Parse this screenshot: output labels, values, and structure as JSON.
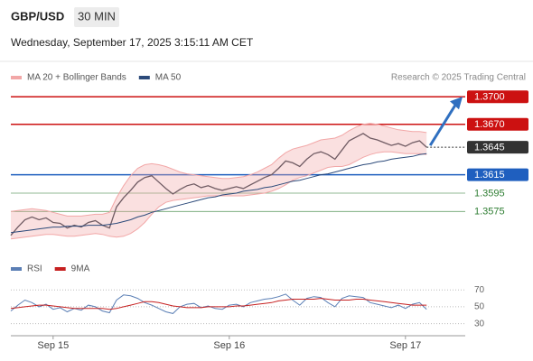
{
  "header": {
    "symbol": "GBP/USD",
    "timeframe": "30 MIN",
    "datetime": "Wednesday, September 17, 2025 3:15:11 AM CET"
  },
  "chart_data": [
    {
      "type": "line",
      "source": "Research © 2025 Trading Central",
      "categories": [
        null,
        null,
        null,
        null,
        null,
        null,
        "Sep 15",
        null,
        null,
        null,
        null,
        null,
        null,
        null,
        null,
        null,
        null,
        null,
        null,
        null,
        null,
        null,
        null,
        null,
        null,
        null,
        null,
        null,
        null,
        null,
        null,
        "Sep 16",
        null,
        null,
        null,
        null,
        null,
        null,
        null,
        null,
        null,
        null,
        null,
        null,
        null,
        null,
        null,
        null,
        null,
        null,
        null,
        null,
        null,
        null,
        null,
        null,
        "Sep 17",
        null,
        null,
        null
      ],
      "series": [
        {
          "color": "#2b3440",
          "values": [
            1.3549,
            1.3558,
            1.3566,
            1.3569,
            1.3566,
            1.3568,
            1.3563,
            1.3562,
            1.3557,
            1.356,
            1.3558,
            1.3563,
            1.3565,
            1.356,
            1.3557,
            1.358,
            1.359,
            1.3598,
            1.3607,
            1.3612,
            1.3614,
            1.3607,
            1.36,
            1.3594,
            1.3599,
            1.3603,
            1.3605,
            1.3601,
            1.3603,
            1.36,
            1.3598,
            1.36,
            1.3602,
            1.36,
            1.3604,
            1.3608,
            1.3612,
            1.3615,
            1.3622,
            1.363,
            1.3628,
            1.3624,
            1.3632,
            1.3638,
            1.364,
            1.3637,
            1.3632,
            1.3642,
            1.3652,
            1.3656,
            1.366,
            1.3655,
            1.3653,
            1.365,
            1.3647,
            1.3649,
            1.3646,
            1.365,
            1.3652,
            1.3645
          ]
        },
        {
          "name": "MA 20 + Bollinger Bands",
          "color": "#f2a7a7",
          "upper": [
            1.3575,
            1.3576,
            1.3577,
            1.3578,
            1.3577,
            1.3576,
            1.3574,
            1.3572,
            1.357,
            1.357,
            1.357,
            1.3571,
            1.3572,
            1.3572,
            1.3574,
            1.359,
            1.3603,
            1.3614,
            1.3622,
            1.3626,
            1.3627,
            1.3626,
            1.3624,
            1.3621,
            1.3618,
            1.3616,
            1.3615,
            1.3614,
            1.3613,
            1.3612,
            1.3611,
            1.3611,
            1.3612,
            1.3613,
            1.3615,
            1.3618,
            1.3622,
            1.3626,
            1.3633,
            1.3639,
            1.3643,
            1.3645,
            1.3647,
            1.365,
            1.3653,
            1.3654,
            1.3655,
            1.3658,
            1.3663,
            1.3667,
            1.367,
            1.3671,
            1.367,
            1.3668,
            1.3666,
            1.3664,
            1.3663,
            1.3662,
            1.3662,
            1.3661
          ],
          "lower": [
            1.3545,
            1.3546,
            1.3547,
            1.3548,
            1.3549,
            1.355,
            1.355,
            1.3549,
            1.3548,
            1.3548,
            1.3549,
            1.355,
            1.3551,
            1.355,
            1.3548,
            1.3547,
            1.3548,
            1.3551,
            1.3556,
            1.3563,
            1.3572,
            1.358,
            1.3585,
            1.3587,
            1.3588,
            1.3589,
            1.359,
            1.3591,
            1.3592,
            1.3592,
            1.3592,
            1.3592,
            1.3592,
            1.3592,
            1.3593,
            1.3594,
            1.3595,
            1.3597,
            1.36,
            1.3604,
            1.3609,
            1.3612,
            1.3614,
            1.3617,
            1.362,
            1.3623,
            1.3624,
            1.3624,
            1.3626,
            1.363,
            1.3634,
            1.3637,
            1.3639,
            1.364,
            1.364,
            1.3639,
            1.3638,
            1.3638,
            1.3638,
            1.3637
          ]
        },
        {
          "name": "MA 50",
          "color": "#2c4a7a",
          "values": [
            1.3552,
            1.3553,
            1.3554,
            1.3555,
            1.3556,
            1.3557,
            1.3558,
            1.3558,
            1.3559,
            1.3559,
            1.3559,
            1.356,
            1.356,
            1.356,
            1.3561,
            1.3562,
            1.3564,
            1.3566,
            1.3569,
            1.3571,
            1.3574,
            1.3576,
            1.3578,
            1.358,
            1.3582,
            1.3584,
            1.3586,
            1.3588,
            1.359,
            1.3591,
            1.3593,
            1.3594,
            1.3595,
            1.3597,
            1.3598,
            1.3599,
            1.3601,
            1.3602,
            1.3604,
            1.3606,
            1.3608,
            1.3609,
            1.3611,
            1.3613,
            1.3615,
            1.3616,
            1.3618,
            1.362,
            1.3622,
            1.3624,
            1.3626,
            1.3627,
            1.3629,
            1.363,
            1.3632,
            1.3633,
            1.3634,
            1.3635,
            1.3637,
            1.3638
          ]
        }
      ],
      "levels": [
        {
          "value": 1.37,
          "label": "1.3700",
          "color": "#cc1111",
          "boxed": true
        },
        {
          "value": 1.367,
          "label": "1.3670",
          "color": "#cc1111",
          "boxed": true
        },
        {
          "value": 1.3645,
          "label": "1.3645",
          "color": "#333333",
          "boxed": true,
          "dotted": true
        },
        {
          "value": 1.3615,
          "label": "1.3615",
          "color": "#1f5fbf",
          "boxed": true
        },
        {
          "value": 1.3595,
          "label": "1.3595",
          "color": "#2e7d32",
          "boxed": false
        },
        {
          "value": 1.3575,
          "label": "1.3575",
          "color": "#2e7d32",
          "boxed": false
        }
      ],
      "ylim": [
        1.3535,
        1.3712
      ]
    },
    {
      "type": "line",
      "series": [
        {
          "name": "RSI",
          "color": "#5b7fb5",
          "values": [
            45,
            52,
            58,
            55,
            50,
            53,
            47,
            49,
            44,
            48,
            46,
            52,
            50,
            45,
            43,
            58,
            64,
            63,
            60,
            55,
            52,
            48,
            44,
            42,
            50,
            53,
            54,
            49,
            51,
            48,
            47,
            52,
            53,
            50,
            55,
            57,
            59,
            60,
            62,
            65,
            58,
            52,
            60,
            62,
            61,
            55,
            50,
            60,
            63,
            62,
            61,
            55,
            53,
            51,
            49,
            52,
            48,
            53,
            55,
            47
          ]
        },
        {
          "name": "9MA",
          "color": "#c62020",
          "values": [
            48,
            49,
            50,
            51,
            52,
            52,
            51,
            50,
            49,
            48,
            48,
            48,
            48,
            48,
            47,
            48,
            50,
            52,
            54,
            56,
            56,
            55,
            53,
            51,
            50,
            49,
            49,
            49,
            50,
            50,
            50,
            50,
            51,
            51,
            52,
            53,
            54,
            55,
            57,
            58,
            59,
            59,
            59,
            59,
            60,
            59,
            58,
            58,
            58,
            59,
            59,
            58,
            57,
            56,
            55,
            54,
            53,
            52,
            52,
            52
          ]
        }
      ],
      "ylim": [
        20,
        82
      ],
      "yticks": [
        30,
        50,
        70
      ]
    }
  ]
}
